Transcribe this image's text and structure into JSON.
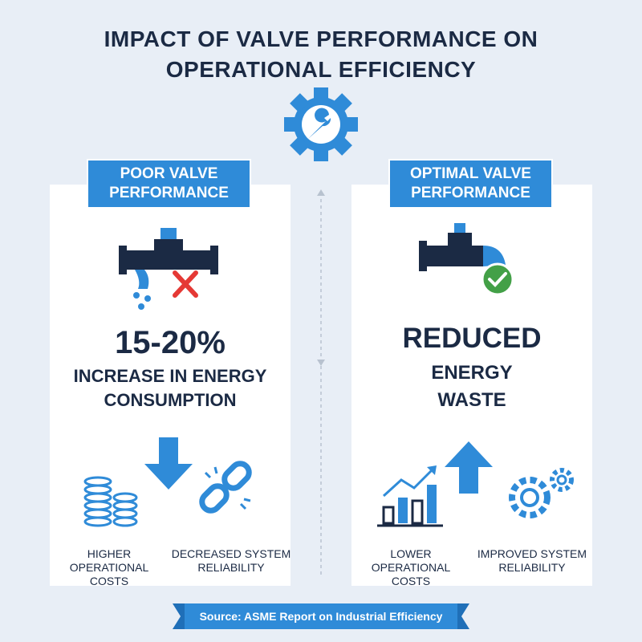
{
  "header": {
    "title": "IMPACT OF VALVE PERFORMANCE ON OPERATIONAL EFFICIENCY"
  },
  "panels": [
    {
      "label": "POOR VALVE PERFORMANCE",
      "headline": "15-20%",
      "subtext": "INCREASE IN ENERGY CONSUMPTION",
      "items": [
        "HIGHER OPERATIONAL COSTS",
        "DECREASED SYSTEM RELIABILITY"
      ]
    },
    {
      "label": "OPTIMAL VALVE PERFORMANCE",
      "headline": "REDUCED",
      "subtext": "ENERGY WASTE",
      "items": [
        "LOWER OPERATIONAL COSTS",
        "IMPROVED SYSTEM RELIABILITY"
      ]
    }
  ],
  "footer": {
    "source": "Source: ASME Report on Industrial Efficiency"
  }
}
